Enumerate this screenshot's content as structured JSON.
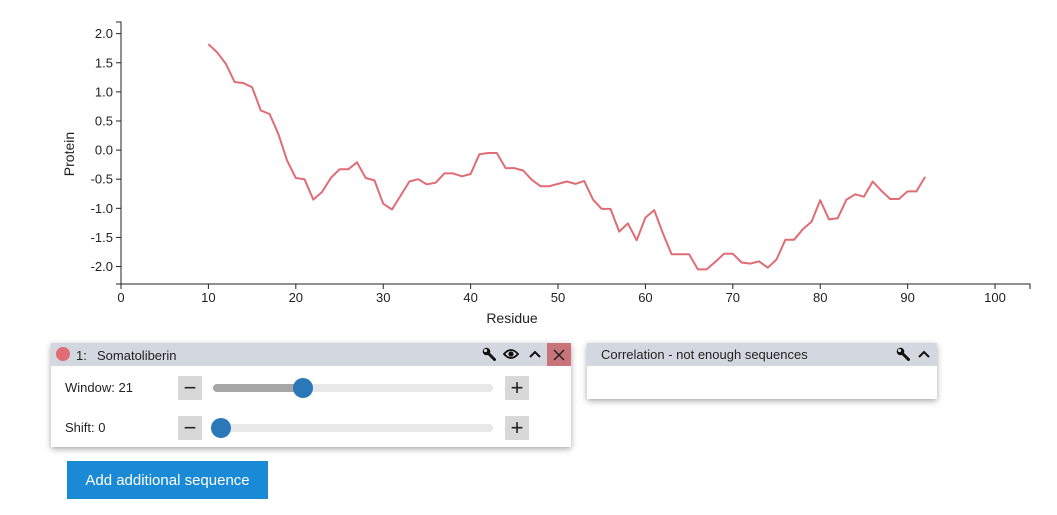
{
  "chart_data": {
    "type": "line",
    "xlabel": "Residue",
    "ylabel": "Protein",
    "xlim": [
      0,
      104
    ],
    "ylim": [
      -2.3,
      2.2
    ],
    "xticks": [
      0,
      10,
      20,
      30,
      40,
      50,
      60,
      70,
      80,
      90,
      100
    ],
    "yticks": [
      2.0,
      1.5,
      1.0,
      0.5,
      0.0,
      -0.5,
      -1.0,
      -1.5,
      -2.0
    ],
    "grid": false,
    "series": [
      {
        "name": "Somatoliberin",
        "color": "#e06c75",
        "x": [
          10,
          11,
          12,
          13,
          14,
          15,
          16,
          17,
          18,
          19,
          20,
          21,
          22,
          23,
          24,
          25,
          26,
          27,
          28,
          29,
          30,
          31,
          32,
          33,
          34,
          35,
          36,
          37,
          38,
          39,
          40,
          41,
          42,
          43,
          44,
          45,
          46,
          47,
          48,
          49,
          50,
          51,
          52,
          53,
          54,
          55,
          56,
          57,
          58,
          59,
          60,
          61,
          62,
          63,
          64,
          65,
          66,
          67,
          68,
          69,
          70,
          71,
          72,
          73,
          74,
          75,
          76,
          77,
          78,
          79,
          80,
          81,
          82,
          83,
          84,
          85,
          86,
          87,
          88,
          89,
          90,
          91,
          92
        ],
        "y": [
          1.82,
          1.68,
          1.48,
          1.17,
          1.15,
          1.08,
          0.68,
          0.62,
          0.28,
          -0.18,
          -0.48,
          -0.5,
          -0.85,
          -0.72,
          -0.48,
          -0.33,
          -0.33,
          -0.21,
          -0.48,
          -0.52,
          -0.92,
          -1.02,
          -0.78,
          -0.54,
          -0.5,
          -0.59,
          -0.56,
          -0.4,
          -0.4,
          -0.45,
          -0.41,
          -0.07,
          -0.05,
          -0.05,
          -0.31,
          -0.31,
          -0.35,
          -0.51,
          -0.62,
          -0.62,
          -0.58,
          -0.54,
          -0.58,
          -0.53,
          -0.85,
          -1.01,
          -1.01,
          -1.4,
          -1.26,
          -1.55,
          -1.16,
          -1.03,
          -1.43,
          -1.79,
          -1.79,
          -1.79,
          -2.05,
          -2.05,
          -1.92,
          -1.78,
          -1.78,
          -1.93,
          -1.95,
          -1.91,
          -2.02,
          -1.88,
          -1.54,
          -1.54,
          -1.36,
          -1.23,
          -0.86,
          -1.19,
          -1.17,
          -0.85,
          -0.76,
          -0.8,
          -0.54,
          -0.7,
          -0.84,
          -0.84,
          -0.71,
          -0.71,
          -0.46
        ]
      }
    ]
  },
  "sequence_panel": {
    "index": "1:",
    "name": "Somatoliberin",
    "color": "#e06c75",
    "window_label": "Window: 21",
    "window_fraction": 0.32,
    "shift_label": "Shift: 0",
    "shift_fraction": 0.0,
    "minus_glyph": "−",
    "plus_glyph": "+"
  },
  "correlation_panel": {
    "title": "Correlation - not enough sequences"
  },
  "add_button": {
    "label": "Add additional sequence"
  },
  "icons": [
    "wrench-icon",
    "eye-icon",
    "chevron-up-icon",
    "close-icon"
  ]
}
